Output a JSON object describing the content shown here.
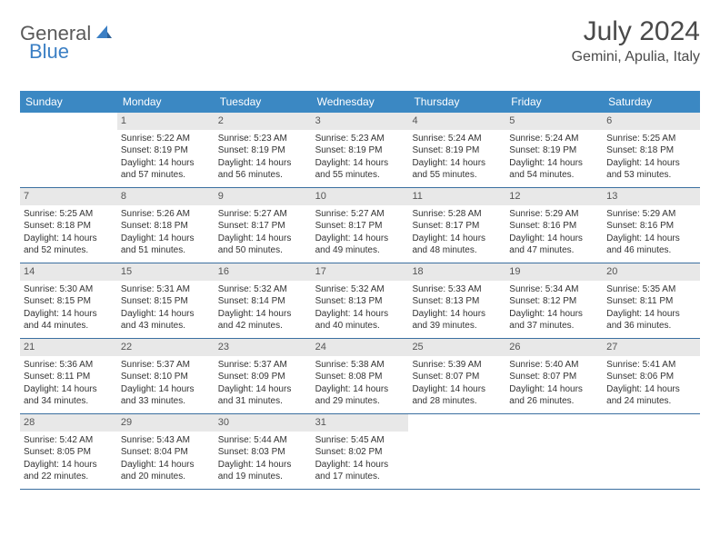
{
  "brand": {
    "general": "General",
    "blue": "Blue"
  },
  "title": "July 2024",
  "location": "Gemini, Apulia, Italy",
  "colors": {
    "header_bg": "#3b88c3",
    "header_text": "#ffffff",
    "daynum_bg": "#e8e8e8",
    "week_border": "#3b6fa0",
    "brand_gray": "#5a5a5a",
    "brand_blue": "#3b7fc4"
  },
  "weekdays": [
    "Sunday",
    "Monday",
    "Tuesday",
    "Wednesday",
    "Thursday",
    "Friday",
    "Saturday"
  ],
  "weeks": [
    [
      {
        "n": "",
        "sr": "",
        "ss": "",
        "dl": ""
      },
      {
        "n": "1",
        "sr": "Sunrise: 5:22 AM",
        "ss": "Sunset: 8:19 PM",
        "dl": "Daylight: 14 hours and 57 minutes."
      },
      {
        "n": "2",
        "sr": "Sunrise: 5:23 AM",
        "ss": "Sunset: 8:19 PM",
        "dl": "Daylight: 14 hours and 56 minutes."
      },
      {
        "n": "3",
        "sr": "Sunrise: 5:23 AM",
        "ss": "Sunset: 8:19 PM",
        "dl": "Daylight: 14 hours and 55 minutes."
      },
      {
        "n": "4",
        "sr": "Sunrise: 5:24 AM",
        "ss": "Sunset: 8:19 PM",
        "dl": "Daylight: 14 hours and 55 minutes."
      },
      {
        "n": "5",
        "sr": "Sunrise: 5:24 AM",
        "ss": "Sunset: 8:19 PM",
        "dl": "Daylight: 14 hours and 54 minutes."
      },
      {
        "n": "6",
        "sr": "Sunrise: 5:25 AM",
        "ss": "Sunset: 8:18 PM",
        "dl": "Daylight: 14 hours and 53 minutes."
      }
    ],
    [
      {
        "n": "7",
        "sr": "Sunrise: 5:25 AM",
        "ss": "Sunset: 8:18 PM",
        "dl": "Daylight: 14 hours and 52 minutes."
      },
      {
        "n": "8",
        "sr": "Sunrise: 5:26 AM",
        "ss": "Sunset: 8:18 PM",
        "dl": "Daylight: 14 hours and 51 minutes."
      },
      {
        "n": "9",
        "sr": "Sunrise: 5:27 AM",
        "ss": "Sunset: 8:17 PM",
        "dl": "Daylight: 14 hours and 50 minutes."
      },
      {
        "n": "10",
        "sr": "Sunrise: 5:27 AM",
        "ss": "Sunset: 8:17 PM",
        "dl": "Daylight: 14 hours and 49 minutes."
      },
      {
        "n": "11",
        "sr": "Sunrise: 5:28 AM",
        "ss": "Sunset: 8:17 PM",
        "dl": "Daylight: 14 hours and 48 minutes."
      },
      {
        "n": "12",
        "sr": "Sunrise: 5:29 AM",
        "ss": "Sunset: 8:16 PM",
        "dl": "Daylight: 14 hours and 47 minutes."
      },
      {
        "n": "13",
        "sr": "Sunrise: 5:29 AM",
        "ss": "Sunset: 8:16 PM",
        "dl": "Daylight: 14 hours and 46 minutes."
      }
    ],
    [
      {
        "n": "14",
        "sr": "Sunrise: 5:30 AM",
        "ss": "Sunset: 8:15 PM",
        "dl": "Daylight: 14 hours and 44 minutes."
      },
      {
        "n": "15",
        "sr": "Sunrise: 5:31 AM",
        "ss": "Sunset: 8:15 PM",
        "dl": "Daylight: 14 hours and 43 minutes."
      },
      {
        "n": "16",
        "sr": "Sunrise: 5:32 AM",
        "ss": "Sunset: 8:14 PM",
        "dl": "Daylight: 14 hours and 42 minutes."
      },
      {
        "n": "17",
        "sr": "Sunrise: 5:32 AM",
        "ss": "Sunset: 8:13 PM",
        "dl": "Daylight: 14 hours and 40 minutes."
      },
      {
        "n": "18",
        "sr": "Sunrise: 5:33 AM",
        "ss": "Sunset: 8:13 PM",
        "dl": "Daylight: 14 hours and 39 minutes."
      },
      {
        "n": "19",
        "sr": "Sunrise: 5:34 AM",
        "ss": "Sunset: 8:12 PM",
        "dl": "Daylight: 14 hours and 37 minutes."
      },
      {
        "n": "20",
        "sr": "Sunrise: 5:35 AM",
        "ss": "Sunset: 8:11 PM",
        "dl": "Daylight: 14 hours and 36 minutes."
      }
    ],
    [
      {
        "n": "21",
        "sr": "Sunrise: 5:36 AM",
        "ss": "Sunset: 8:11 PM",
        "dl": "Daylight: 14 hours and 34 minutes."
      },
      {
        "n": "22",
        "sr": "Sunrise: 5:37 AM",
        "ss": "Sunset: 8:10 PM",
        "dl": "Daylight: 14 hours and 33 minutes."
      },
      {
        "n": "23",
        "sr": "Sunrise: 5:37 AM",
        "ss": "Sunset: 8:09 PM",
        "dl": "Daylight: 14 hours and 31 minutes."
      },
      {
        "n": "24",
        "sr": "Sunrise: 5:38 AM",
        "ss": "Sunset: 8:08 PM",
        "dl": "Daylight: 14 hours and 29 minutes."
      },
      {
        "n": "25",
        "sr": "Sunrise: 5:39 AM",
        "ss": "Sunset: 8:07 PM",
        "dl": "Daylight: 14 hours and 28 minutes."
      },
      {
        "n": "26",
        "sr": "Sunrise: 5:40 AM",
        "ss": "Sunset: 8:07 PM",
        "dl": "Daylight: 14 hours and 26 minutes."
      },
      {
        "n": "27",
        "sr": "Sunrise: 5:41 AM",
        "ss": "Sunset: 8:06 PM",
        "dl": "Daylight: 14 hours and 24 minutes."
      }
    ],
    [
      {
        "n": "28",
        "sr": "Sunrise: 5:42 AM",
        "ss": "Sunset: 8:05 PM",
        "dl": "Daylight: 14 hours and 22 minutes."
      },
      {
        "n": "29",
        "sr": "Sunrise: 5:43 AM",
        "ss": "Sunset: 8:04 PM",
        "dl": "Daylight: 14 hours and 20 minutes."
      },
      {
        "n": "30",
        "sr": "Sunrise: 5:44 AM",
        "ss": "Sunset: 8:03 PM",
        "dl": "Daylight: 14 hours and 19 minutes."
      },
      {
        "n": "31",
        "sr": "Sunrise: 5:45 AM",
        "ss": "Sunset: 8:02 PM",
        "dl": "Daylight: 14 hours and 17 minutes."
      },
      {
        "n": "",
        "sr": "",
        "ss": "",
        "dl": ""
      },
      {
        "n": "",
        "sr": "",
        "ss": "",
        "dl": ""
      },
      {
        "n": "",
        "sr": "",
        "ss": "",
        "dl": ""
      }
    ]
  ]
}
